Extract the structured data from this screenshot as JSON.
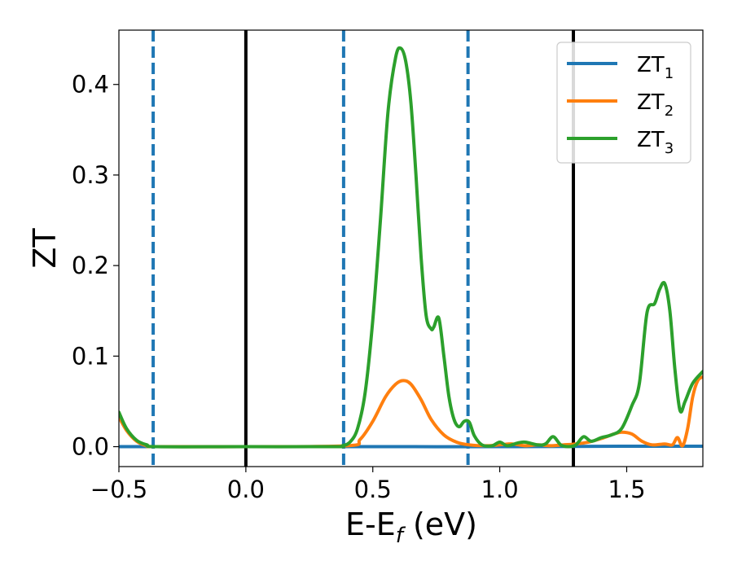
{
  "chart_data": {
    "type": "line",
    "xlabel": "E-E",
    "xlabel_sub": "f",
    "xlabel_unit": " (eV)",
    "ylabel": "ZT",
    "xlim": [
      -0.5,
      1.8
    ],
    "ylim": [
      -0.022,
      0.46
    ],
    "xticks": [
      -0.5,
      0.0,
      0.5,
      1.0,
      1.5
    ],
    "xtick_labels": [
      "−0.5",
      "0.0",
      "0.5",
      "1.0",
      "1.5"
    ],
    "yticks": [
      0.0,
      0.1,
      0.2,
      0.3,
      0.4
    ],
    "ytick_labels": [
      "0.0",
      "0.1",
      "0.2",
      "0.3",
      "0.4"
    ],
    "grid": false,
    "legend_position": "top-right",
    "vlines": [
      {
        "x": -0.365,
        "style": "dashed",
        "color": "#1f77b4"
      },
      {
        "x": 0.0,
        "style": "solid",
        "color": "#000000"
      },
      {
        "x": 0.385,
        "style": "dashed",
        "color": "#1f77b4"
      },
      {
        "x": 0.875,
        "style": "dashed",
        "color": "#1f77b4"
      },
      {
        "x": 1.29,
        "style": "solid",
        "color": "#000000"
      }
    ],
    "series": [
      {
        "name": "ZT",
        "sub": "1",
        "color": "#1f77b4",
        "x": [
          -0.5,
          0.0,
          0.5,
          1.0,
          1.5,
          1.8
        ],
        "y": [
          0.0,
          0.0,
          0.0,
          0.0,
          0.0005,
          0.0005
        ]
      },
      {
        "name": "ZT",
        "sub": "2",
        "color": "#ff7f0e",
        "x": [
          -0.5,
          -0.47,
          -0.43,
          -0.39,
          -0.35,
          0.0,
          0.4,
          0.45,
          0.5,
          0.55,
          0.59,
          0.62,
          0.65,
          0.69,
          0.73,
          0.78,
          0.83,
          0.88,
          0.95,
          1.0,
          1.05,
          1.1,
          1.15,
          1.2,
          1.25,
          1.3,
          1.35,
          1.4,
          1.45,
          1.48,
          1.52,
          1.56,
          1.6,
          1.65,
          1.68,
          1.7,
          1.72,
          1.74,
          1.76,
          1.78,
          1.8
        ],
        "y": [
          0.033,
          0.018,
          0.006,
          0.001,
          0.0,
          0.0,
          0.001,
          0.008,
          0.028,
          0.055,
          0.069,
          0.073,
          0.069,
          0.052,
          0.03,
          0.013,
          0.005,
          0.002,
          0.001,
          0.002,
          0.003,
          0.001,
          0.002,
          0.001,
          0.002,
          0.003,
          0.005,
          0.009,
          0.014,
          0.016,
          0.014,
          0.006,
          0.002,
          0.003,
          0.002,
          0.01,
          0.001,
          0.02,
          0.055,
          0.073,
          0.077
        ]
      },
      {
        "name": "ZT",
        "sub": "3",
        "color": "#2ca02c",
        "x": [
          -0.5,
          -0.47,
          -0.43,
          -0.39,
          -0.35,
          0.0,
          0.35,
          0.38,
          0.41,
          0.44,
          0.47,
          0.5,
          0.53,
          0.56,
          0.59,
          0.61,
          0.63,
          0.65,
          0.67,
          0.69,
          0.71,
          0.73,
          0.74,
          0.76,
          0.78,
          0.8,
          0.82,
          0.84,
          0.86,
          0.88,
          0.9,
          0.93,
          0.97,
          1.0,
          1.03,
          1.07,
          1.1,
          1.15,
          1.18,
          1.21,
          1.24,
          1.27,
          1.3,
          1.33,
          1.36,
          1.4,
          1.44,
          1.48,
          1.52,
          1.55,
          1.58,
          1.61,
          1.63,
          1.65,
          1.67,
          1.69,
          1.71,
          1.73,
          1.76,
          1.8
        ],
        "y": [
          0.038,
          0.02,
          0.007,
          0.002,
          0.0,
          0.0,
          0.0,
          0.001,
          0.005,
          0.02,
          0.06,
          0.14,
          0.25,
          0.37,
          0.43,
          0.44,
          0.425,
          0.38,
          0.3,
          0.21,
          0.145,
          0.13,
          0.132,
          0.142,
          0.1,
          0.055,
          0.03,
          0.022,
          0.028,
          0.027,
          0.012,
          0.002,
          0.001,
          0.005,
          0.001,
          0.004,
          0.005,
          0.002,
          0.003,
          0.011,
          0.002,
          0.0,
          0.002,
          0.011,
          0.006,
          0.01,
          0.013,
          0.02,
          0.045,
          0.07,
          0.148,
          0.158,
          0.174,
          0.18,
          0.15,
          0.085,
          0.04,
          0.05,
          0.07,
          0.083
        ]
      }
    ]
  }
}
